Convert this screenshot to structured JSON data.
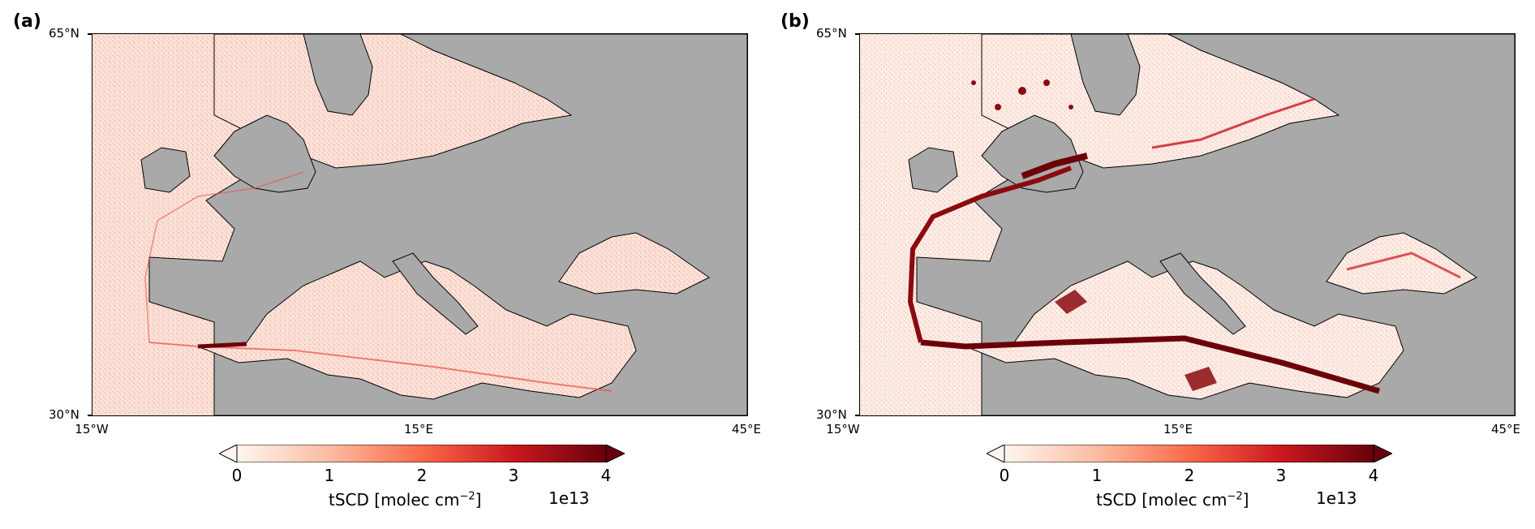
{
  "panels": [
    {
      "letter": "(a)",
      "lat_top": "65°N",
      "lat_bottom": "30°N",
      "lon_left": "15°W",
      "lon_mid": "15°E",
      "lon_right": "45°E",
      "colorbar": {
        "ticks": [
          "0",
          "1",
          "2",
          "3",
          "4"
        ],
        "label": "tSCD [molec cm",
        "label_sup": "−2",
        "label_end": "]",
        "exponent": "1e13"
      },
      "intensity": "low"
    },
    {
      "letter": "(b)",
      "lat_top": "65°N",
      "lat_bottom": "30°N",
      "lon_left": "15°W",
      "lon_mid": "15°E",
      "lon_right": "45°E",
      "colorbar": {
        "ticks": [
          "0",
          "1",
          "2",
          "3",
          "4"
        ],
        "label": "tSCD [molec cm",
        "label_sup": "−2",
        "label_end": "]",
        "exponent": "1e13"
      },
      "intensity": "high"
    }
  ],
  "colors": {
    "land": "#a9a9a9",
    "sea_low": "#fbe0d6",
    "sea_high": "#fdeee7",
    "plume_light": "#e8514a",
    "plume_dark": "#6b0008",
    "colormap": [
      "#fff5f0",
      "#fcbba1",
      "#fb6a4a",
      "#cb181d",
      "#67000d"
    ]
  }
}
